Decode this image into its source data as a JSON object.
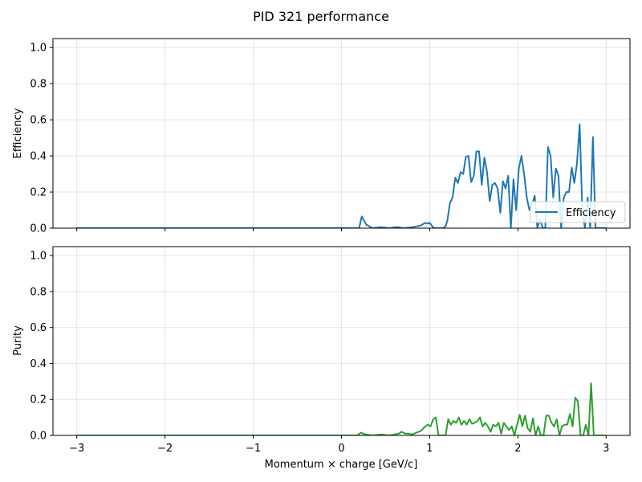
{
  "figure": {
    "title": "PID 321 performance"
  },
  "chart_data": [
    {
      "type": "line",
      "xlabel": "",
      "ylabel": "Efficiency",
      "xlim": [
        -3.27,
        3.27
      ],
      "ylim": [
        0,
        1.05
      ],
      "xticks": [
        -3,
        -2,
        -1,
        0,
        1,
        2,
        3
      ],
      "xtick_labels_visible": false,
      "yticks": [
        0.0,
        0.2,
        0.4,
        0.6,
        0.8,
        1.0
      ],
      "ytick_labels": [
        "0.0",
        "0.2",
        "0.4",
        "0.6",
        "0.8",
        "1.0"
      ],
      "grid": true,
      "legend": {
        "placement": "lower-right",
        "entries": [
          "Efficiency"
        ]
      },
      "series": [
        {
          "name": "Efficiency",
          "color": "#1f77b4",
          "x": [
            -3.0,
            0.0,
            0.15,
            0.2,
            0.23,
            0.28,
            0.35,
            0.45,
            0.55,
            0.6,
            0.65,
            0.7,
            0.8,
            0.85,
            0.9,
            0.95,
            0.98,
            1.0,
            1.02,
            1.05,
            1.1,
            1.15,
            1.18,
            1.2,
            1.23,
            1.26,
            1.29,
            1.32,
            1.35,
            1.38,
            1.41,
            1.44,
            1.47,
            1.5,
            1.53,
            1.56,
            1.59,
            1.62,
            1.65,
            1.68,
            1.71,
            1.74,
            1.77,
            1.8,
            1.83,
            1.86,
            1.89,
            1.92,
            1.95,
            1.98,
            2.01,
            2.04,
            2.07,
            2.1,
            2.13,
            2.16,
            2.19,
            2.22,
            2.25,
            2.28,
            2.31,
            2.34,
            2.37,
            2.4,
            2.43,
            2.46,
            2.49,
            2.52,
            2.55,
            2.58,
            2.61,
            2.64,
            2.67,
            2.7,
            2.73,
            2.76,
            2.79,
            2.82,
            2.85,
            2.88,
            2.91,
            2.94,
            2.97,
            3.0
          ],
          "y": [
            0.0,
            0.0,
            0.0,
            0.0,
            0.065,
            0.02,
            0.0,
            0.005,
            0.0,
            0.005,
            0.005,
            0.0,
            0.005,
            0.01,
            0.015,
            0.03,
            0.025,
            0.03,
            0.015,
            0.0,
            0.0,
            0.0,
            0.01,
            0.04,
            0.14,
            0.17,
            0.28,
            0.25,
            0.31,
            0.3,
            0.395,
            0.4,
            0.255,
            0.29,
            0.425,
            0.425,
            0.24,
            0.39,
            0.31,
            0.15,
            0.24,
            0.25,
            0.22,
            0.085,
            0.26,
            0.22,
            0.29,
            0.0,
            0.27,
            0.1,
            0.33,
            0.4,
            0.3,
            0.17,
            0.1,
            0.13,
            0.18,
            0.0,
            0.05,
            0.0,
            0.0,
            0.45,
            0.4,
            0.17,
            0.33,
            0.29,
            0.0,
            0.17,
            0.2,
            0.2,
            0.335,
            0.25,
            0.36,
            0.575,
            0.1,
            0.0,
            0.17,
            0.0,
            0.505,
            0.0,
            0.0,
            0.0,
            0.0,
            0.0
          ]
        }
      ]
    },
    {
      "type": "line",
      "xlabel": "Momentum × charge [GeV/c]",
      "ylabel": "Purity",
      "xlim": [
        -3.27,
        3.27
      ],
      "ylim": [
        0,
        1.05
      ],
      "xticks": [
        -3,
        -2,
        -1,
        0,
        1,
        2,
        3
      ],
      "xtick_labels": [
        "−3",
        "−2",
        "−1",
        "0",
        "1",
        "2",
        "3"
      ],
      "yticks": [
        0.0,
        0.2,
        0.4,
        0.6,
        0.8,
        1.0
      ],
      "ytick_labels": [
        "0.0",
        "0.2",
        "0.4",
        "0.6",
        "0.8",
        "1.0"
      ],
      "grid": true,
      "series": [
        {
          "color": "#2ca02c",
          "x": [
            -3.0,
            0.0,
            0.18,
            0.22,
            0.27,
            0.35,
            0.45,
            0.55,
            0.6,
            0.65,
            0.68,
            0.72,
            0.76,
            0.8,
            0.85,
            0.9,
            0.95,
            0.98,
            1.01,
            1.04,
            1.07,
            1.1,
            1.15,
            1.18,
            1.21,
            1.24,
            1.27,
            1.3,
            1.33,
            1.36,
            1.39,
            1.42,
            1.45,
            1.48,
            1.51,
            1.54,
            1.57,
            1.6,
            1.63,
            1.66,
            1.69,
            1.72,
            1.75,
            1.78,
            1.81,
            1.84,
            1.87,
            1.9,
            1.93,
            1.96,
            1.99,
            2.02,
            2.05,
            2.08,
            2.11,
            2.14,
            2.17,
            2.2,
            2.23,
            2.26,
            2.29,
            2.32,
            2.35,
            2.38,
            2.41,
            2.44,
            2.47,
            2.5,
            2.53,
            2.56,
            2.59,
            2.62,
            2.65,
            2.68,
            2.71,
            2.74,
            2.77,
            2.8,
            2.83,
            2.86,
            2.89,
            2.92,
            2.95,
            3.0
          ],
          "y": [
            0.0,
            0.0,
            0.0,
            0.015,
            0.005,
            0.0,
            0.005,
            0.0,
            0.005,
            0.01,
            0.02,
            0.01,
            0.01,
            0.005,
            0.015,
            0.025,
            0.05,
            0.06,
            0.05,
            0.09,
            0.1,
            0.0,
            0.0,
            0.0,
            0.09,
            0.06,
            0.08,
            0.07,
            0.1,
            0.06,
            0.08,
            0.06,
            0.09,
            0.065,
            0.07,
            0.08,
            0.1,
            0.05,
            0.07,
            0.05,
            0.02,
            0.06,
            0.05,
            0.07,
            0.01,
            0.07,
            0.05,
            0.03,
            0.05,
            0.0,
            0.06,
            0.115,
            0.05,
            0.11,
            0.04,
            0.02,
            0.095,
            0.0,
            0.05,
            0.0,
            0.0,
            0.11,
            0.11,
            0.07,
            0.05,
            0.09,
            0.0,
            0.05,
            0.06,
            0.06,
            0.12,
            0.05,
            0.21,
            0.19,
            0.0,
            0.0,
            0.06,
            0.0,
            0.29,
            0.0,
            0.0,
            0.0,
            0.0,
            0.0
          ]
        }
      ]
    }
  ]
}
